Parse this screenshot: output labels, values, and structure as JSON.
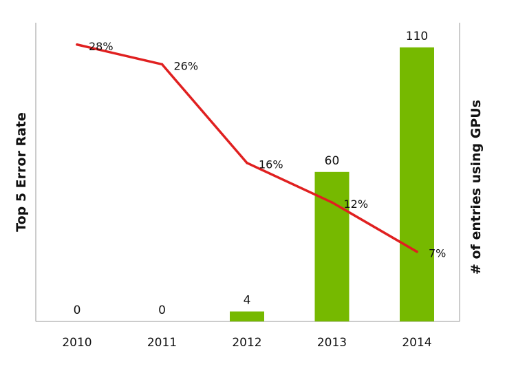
{
  "chart_data": {
    "type": "bar+line",
    "categories": [
      "2010",
      "2011",
      "2012",
      "2013",
      "2014"
    ],
    "series": [
      {
        "type": "bar",
        "axis": "right",
        "values": [
          0,
          0,
          4,
          60,
          110
        ],
        "labels": [
          "0",
          "0",
          "4",
          "60",
          "110"
        ],
        "color": "#76b900"
      },
      {
        "type": "line",
        "axis": "left",
        "values": [
          28,
          26,
          16,
          12,
          7
        ],
        "labels": [
          "28%",
          "26%",
          "16%",
          "12%",
          "7%"
        ],
        "color": "#e02020"
      }
    ],
    "ylabel_left": "Top 5 Error Rate",
    "ylabel_right": "# of entries using GPUs",
    "ylim_left": [
      0,
      30
    ],
    "ylim_right": [
      0,
      120
    ],
    "grid": false,
    "legend": "none"
  }
}
